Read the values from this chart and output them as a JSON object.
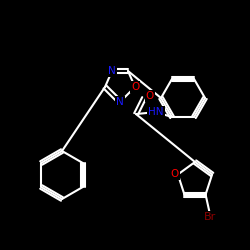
{
  "background": "#000000",
  "bond_color": "#ffffff",
  "bond_lw": 1.5,
  "atom_colors": {
    "N": "#1a1aff",
    "O": "#ff0000",
    "Br": "#8B0000",
    "C": "#ffffff",
    "H": "#ffffff"
  },
  "font_size": 7.5,
  "fig_size": [
    2.5,
    2.5
  ],
  "dpi": 100
}
